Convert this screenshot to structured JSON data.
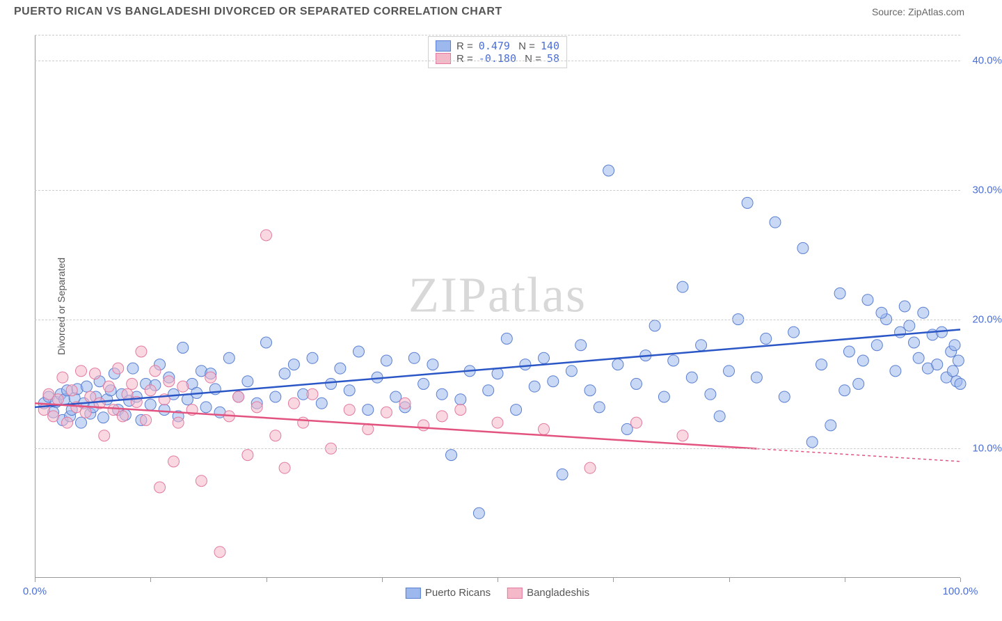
{
  "title": "PUERTO RICAN VS BANGLADESHI DIVORCED OR SEPARATED CORRELATION CHART",
  "source": "Source: ZipAtlas.com",
  "watermark": {
    "part1": "ZIP",
    "part2": "atlas"
  },
  "chart": {
    "type": "scatter",
    "background_color": "#ffffff",
    "grid_color": "#cccccc",
    "axis_color": "#999999",
    "tick_label_color": "#4a6fd8",
    "tick_fontsize": 15,
    "title_fontsize": 16,
    "ylabel": "Divorced or Separated",
    "label_fontsize": 14,
    "xlim": [
      0,
      100
    ],
    "ylim": [
      0,
      42
    ],
    "y_ticks": [
      10,
      20,
      30,
      40
    ],
    "y_tick_labels": [
      "10.0%",
      "20.0%",
      "30.0%",
      "40.0%"
    ],
    "x_ticks": [
      0,
      12.5,
      25,
      37.5,
      50,
      62.5,
      75,
      87.5,
      100
    ],
    "x_tick_labels_shown": {
      "0": "0.0%",
      "100": "100.0%"
    },
    "marker_radius": 8,
    "marker_opacity": 0.55,
    "marker_stroke_width": 1,
    "series": [
      {
        "name": "Puerto Ricans",
        "fill_color": "#9db8ec",
        "stroke_color": "#5a7fd0",
        "line_color": "#2a56c6",
        "R": "0.479",
        "N": "140",
        "trend": {
          "x1": 0,
          "y1": 13.2,
          "x2": 100,
          "y2": 19.2,
          "dash_from_x": null
        },
        "points": [
          [
            1.0,
            13.5
          ],
          [
            1.5,
            14.0
          ],
          [
            2.0,
            12.8
          ],
          [
            2.3,
            13.6
          ],
          [
            2.8,
            14.2
          ],
          [
            3.0,
            12.2
          ],
          [
            3.2,
            13.8
          ],
          [
            3.5,
            14.5
          ],
          [
            3.8,
            12.5
          ],
          [
            4.0,
            13.0
          ],
          [
            4.3,
            13.9
          ],
          [
            4.6,
            14.6
          ],
          [
            5.0,
            12.0
          ],
          [
            5.3,
            13.5
          ],
          [
            5.6,
            14.8
          ],
          [
            6.0,
            12.7
          ],
          [
            6.3,
            13.2
          ],
          [
            6.6,
            14.0
          ],
          [
            7.0,
            15.2
          ],
          [
            7.4,
            12.4
          ],
          [
            7.8,
            13.8
          ],
          [
            8.2,
            14.5
          ],
          [
            8.6,
            15.8
          ],
          [
            9.0,
            13.0
          ],
          [
            9.4,
            14.2
          ],
          [
            9.8,
            12.6
          ],
          [
            10.2,
            13.7
          ],
          [
            10.6,
            16.2
          ],
          [
            11.0,
            14.0
          ],
          [
            11.5,
            12.2
          ],
          [
            12.0,
            15.0
          ],
          [
            12.5,
            13.4
          ],
          [
            13.0,
            14.9
          ],
          [
            13.5,
            16.5
          ],
          [
            14.0,
            13.0
          ],
          [
            14.5,
            15.5
          ],
          [
            15.0,
            14.2
          ],
          [
            15.5,
            12.5
          ],
          [
            16.0,
            17.8
          ],
          [
            16.5,
            13.8
          ],
          [
            17.0,
            15.0
          ],
          [
            17.5,
            14.3
          ],
          [
            18.0,
            16.0
          ],
          [
            18.5,
            13.2
          ],
          [
            19.0,
            15.8
          ],
          [
            19.5,
            14.6
          ],
          [
            20.0,
            12.8
          ],
          [
            21.0,
            17.0
          ],
          [
            22.0,
            14.0
          ],
          [
            23.0,
            15.2
          ],
          [
            24.0,
            13.5
          ],
          [
            25.0,
            18.2
          ],
          [
            26.0,
            14.0
          ],
          [
            27.0,
            15.8
          ],
          [
            28.0,
            16.5
          ],
          [
            29.0,
            14.2
          ],
          [
            30.0,
            17.0
          ],
          [
            31.0,
            13.5
          ],
          [
            32.0,
            15.0
          ],
          [
            33.0,
            16.2
          ],
          [
            34.0,
            14.5
          ],
          [
            35.0,
            17.5
          ],
          [
            36.0,
            13.0
          ],
          [
            37.0,
            15.5
          ],
          [
            38.0,
            16.8
          ],
          [
            39.0,
            14.0
          ],
          [
            40.0,
            13.2
          ],
          [
            41.0,
            17.0
          ],
          [
            42.0,
            15.0
          ],
          [
            43.0,
            16.5
          ],
          [
            44.0,
            14.2
          ],
          [
            45.0,
            9.5
          ],
          [
            46.0,
            13.8
          ],
          [
            47.0,
            16.0
          ],
          [
            48.0,
            5.0
          ],
          [
            49.0,
            14.5
          ],
          [
            50.0,
            15.8
          ],
          [
            51.0,
            18.5
          ],
          [
            52.0,
            13.0
          ],
          [
            53.0,
            16.5
          ],
          [
            54.0,
            14.8
          ],
          [
            55.0,
            17.0
          ],
          [
            56.0,
            15.2
          ],
          [
            57.0,
            8.0
          ],
          [
            58.0,
            16.0
          ],
          [
            59.0,
            18.0
          ],
          [
            60.0,
            14.5
          ],
          [
            61.0,
            13.2
          ],
          [
            62.0,
            31.5
          ],
          [
            63.0,
            16.5
          ],
          [
            64.0,
            11.5
          ],
          [
            65.0,
            15.0
          ],
          [
            66.0,
            17.2
          ],
          [
            67.0,
            19.5
          ],
          [
            68.0,
            14.0
          ],
          [
            69.0,
            16.8
          ],
          [
            70.0,
            22.5
          ],
          [
            71.0,
            15.5
          ],
          [
            72.0,
            18.0
          ],
          [
            73.0,
            14.2
          ],
          [
            74.0,
            12.5
          ],
          [
            75.0,
            16.0
          ],
          [
            76.0,
            20.0
          ],
          [
            77.0,
            29.0
          ],
          [
            78.0,
            15.5
          ],
          [
            79.0,
            18.5
          ],
          [
            80.0,
            27.5
          ],
          [
            81.0,
            14.0
          ],
          [
            82.0,
            19.0
          ],
          [
            83.0,
            25.5
          ],
          [
            84.0,
            10.5
          ],
          [
            85.0,
            16.5
          ],
          [
            86.0,
            11.8
          ],
          [
            87.0,
            22.0
          ],
          [
            88.0,
            17.5
          ],
          [
            89.0,
            15.0
          ],
          [
            90.0,
            21.5
          ],
          [
            91.0,
            18.0
          ],
          [
            92.0,
            20.0
          ],
          [
            93.0,
            16.0
          ],
          [
            94.0,
            21.0
          ],
          [
            94.5,
            19.5
          ],
          [
            95.0,
            18.2
          ],
          [
            95.5,
            17.0
          ],
          [
            96.0,
            20.5
          ],
          [
            96.5,
            16.2
          ],
          [
            97.0,
            18.8
          ],
          [
            97.5,
            16.5
          ],
          [
            98.0,
            19.0
          ],
          [
            98.5,
            15.5
          ],
          [
            99.0,
            17.5
          ],
          [
            99.2,
            16.0
          ],
          [
            99.4,
            18.0
          ],
          [
            99.6,
            15.2
          ],
          [
            99.8,
            16.8
          ],
          [
            100.0,
            15.0
          ],
          [
            93.5,
            19.0
          ],
          [
            91.5,
            20.5
          ],
          [
            89.5,
            16.8
          ],
          [
            87.5,
            14.5
          ]
        ]
      },
      {
        "name": "Bangladeshis",
        "fill_color": "#f4b8c9",
        "stroke_color": "#e27aa0",
        "line_color": "#e2537f",
        "R": "-0.180",
        "N": "58",
        "trend": {
          "x1": 0,
          "y1": 13.5,
          "x2": 100,
          "y2": 9.0,
          "dash_from_x": 78
        },
        "points": [
          [
            1.0,
            13.0
          ],
          [
            1.5,
            14.2
          ],
          [
            2.0,
            12.5
          ],
          [
            2.5,
            13.8
          ],
          [
            3.0,
            15.5
          ],
          [
            3.5,
            12.0
          ],
          [
            4.0,
            14.5
          ],
          [
            4.5,
            13.2
          ],
          [
            5.0,
            16.0
          ],
          [
            5.5,
            12.8
          ],
          [
            6.0,
            14.0
          ],
          [
            6.5,
            15.8
          ],
          [
            7.0,
            13.5
          ],
          [
            7.5,
            11.0
          ],
          [
            8.0,
            14.8
          ],
          [
            8.5,
            13.0
          ],
          [
            9.0,
            16.2
          ],
          [
            9.5,
            12.5
          ],
          [
            10.0,
            14.2
          ],
          [
            10.5,
            15.0
          ],
          [
            11.0,
            13.6
          ],
          [
            11.5,
            17.5
          ],
          [
            12.0,
            12.2
          ],
          [
            12.5,
            14.5
          ],
          [
            13.0,
            16.0
          ],
          [
            13.5,
            7.0
          ],
          [
            14.0,
            13.8
          ],
          [
            14.5,
            15.2
          ],
          [
            15.0,
            9.0
          ],
          [
            15.5,
            12.0
          ],
          [
            16.0,
            14.8
          ],
          [
            17.0,
            13.0
          ],
          [
            18.0,
            7.5
          ],
          [
            19.0,
            15.5
          ],
          [
            20.0,
            2.0
          ],
          [
            21.0,
            12.5
          ],
          [
            22.0,
            14.0
          ],
          [
            23.0,
            9.5
          ],
          [
            24.0,
            13.2
          ],
          [
            25.0,
            26.5
          ],
          [
            26.0,
            11.0
          ],
          [
            27.0,
            8.5
          ],
          [
            28.0,
            13.5
          ],
          [
            29.0,
            12.0
          ],
          [
            30.0,
            14.2
          ],
          [
            32.0,
            10.0
          ],
          [
            34.0,
            13.0
          ],
          [
            36.0,
            11.5
          ],
          [
            38.0,
            12.8
          ],
          [
            40.0,
            13.5
          ],
          [
            42.0,
            11.8
          ],
          [
            44.0,
            12.5
          ],
          [
            46.0,
            13.0
          ],
          [
            50.0,
            12.0
          ],
          [
            55.0,
            11.5
          ],
          [
            60.0,
            8.5
          ],
          [
            65.0,
            12.0
          ],
          [
            70.0,
            11.0
          ]
        ]
      }
    ]
  }
}
